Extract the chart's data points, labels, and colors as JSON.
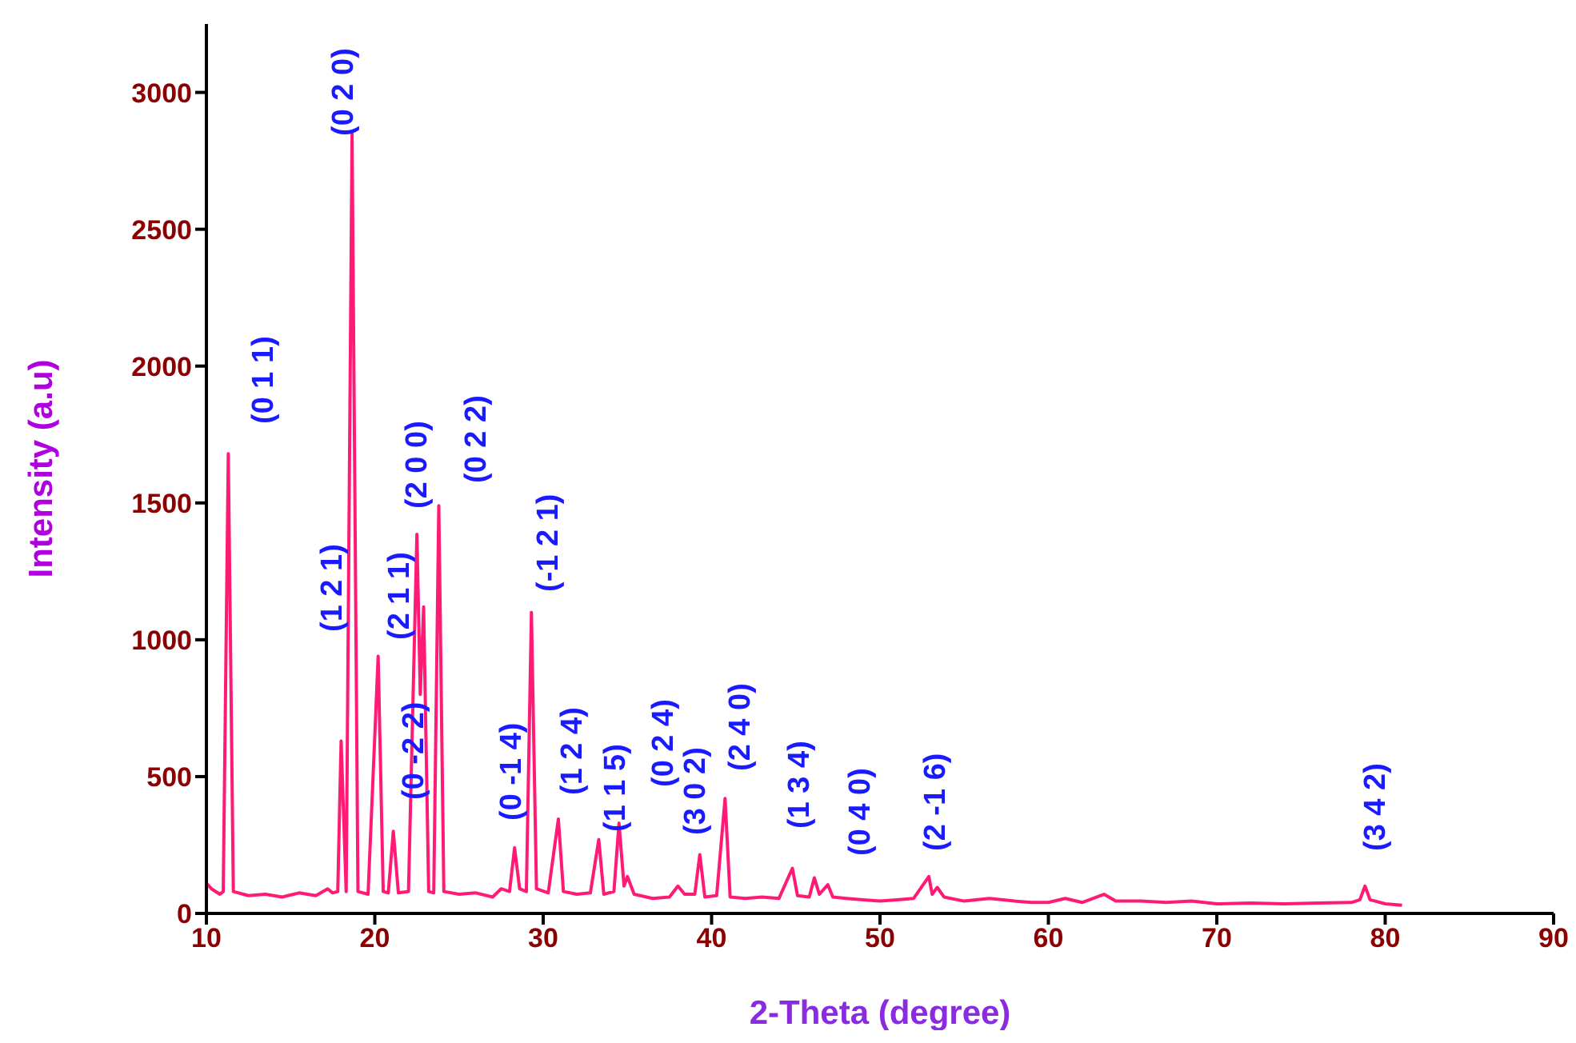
{
  "chart_data": {
    "type": "line",
    "xlabel": "2-Theta (degree)",
    "ylabel": "Intensity (a.u)",
    "xlim": [
      10,
      90
    ],
    "xticks": [
      10,
      20,
      30,
      40,
      50,
      60,
      70,
      80,
      90
    ],
    "ylim": [
      0,
      3250
    ],
    "yticks": [
      0,
      500,
      1000,
      1500,
      2000,
      2500,
      3000
    ],
    "grid": false,
    "legend": false,
    "marker": "none",
    "line_style": "solid",
    "series": [
      {
        "color": "#ff1a75",
        "x": [
          10,
          10.3,
          10.8,
          11.0,
          11.3,
          11.6,
          12.5,
          13.5,
          14.5,
          15.5,
          16.5,
          17.2,
          17.5,
          17.8,
          18.0,
          18.3,
          18.65,
          19.0,
          19.6,
          20.2,
          20.5,
          20.8,
          21.1,
          21.4,
          22.0,
          22.5,
          22.7,
          22.9,
          23.2,
          23.5,
          23.8,
          24.1,
          25.0,
          26.0,
          27.0,
          27.5,
          28.0,
          28.3,
          28.6,
          29.0,
          29.3,
          29.6,
          30.3,
          30.9,
          31.2,
          32.0,
          32.8,
          33.3,
          33.6,
          34.2,
          34.5,
          34.8,
          35.0,
          35.4,
          36.5,
          37.5,
          38.0,
          38.4,
          39.0,
          39.3,
          39.6,
          40.3,
          40.8,
          41.1,
          42.0,
          43.0,
          44.0,
          44.8,
          45.1,
          45.8,
          46.1,
          46.4,
          46.9,
          47.2,
          48.0,
          49.0,
          50.0,
          51.0,
          52.0,
          52.9,
          53.1,
          53.4,
          53.8,
          55.0,
          56.5,
          58.0,
          59.0,
          60.0,
          61.0,
          62.0,
          63.3,
          64.0,
          65.5,
          67.0,
          68.5,
          70.0,
          72.0,
          74.0,
          76.0,
          78.0,
          78.5,
          78.8,
          79.1,
          80.0,
          81.0
        ],
        "values": [
          110,
          90,
          70,
          80,
          1680,
          80,
          65,
          70,
          60,
          75,
          65,
          90,
          75,
          80,
          630,
          80,
          2850,
          80,
          70,
          940,
          80,
          75,
          300,
          75,
          80,
          1385,
          800,
          1120,
          80,
          75,
          1490,
          80,
          70,
          75,
          60,
          90,
          80,
          240,
          90,
          80,
          1100,
          90,
          75,
          345,
          80,
          70,
          75,
          270,
          70,
          80,
          330,
          100,
          135,
          70,
          55,
          60,
          100,
          70,
          70,
          215,
          60,
          65,
          420,
          60,
          55,
          60,
          55,
          165,
          65,
          60,
          130,
          70,
          105,
          60,
          55,
          50,
          45,
          50,
          55,
          135,
          70,
          95,
          60,
          45,
          55,
          45,
          40,
          40,
          55,
          40,
          70,
          45,
          45,
          40,
          45,
          35,
          38,
          35,
          38,
          40,
          50,
          100,
          50,
          35,
          30
        ]
      }
    ],
    "annotations": [
      "(0 1 1)",
      "(1 2 1)",
      "(0 2 0)",
      "(2 1 1)",
      "(0 -2 2)",
      "(2 0 0)",
      "(0 2 2)",
      "(0 -1 4)",
      "(-1 2 1)",
      "(1 2 4)",
      "(1 1 5)",
      "(0 2 4)",
      "(3 0 2)",
      "(2 4 0)",
      "(1 3 4)",
      "(0 4 0)",
      "(2 -1 6)",
      "(3 4 2)"
    ]
  }
}
